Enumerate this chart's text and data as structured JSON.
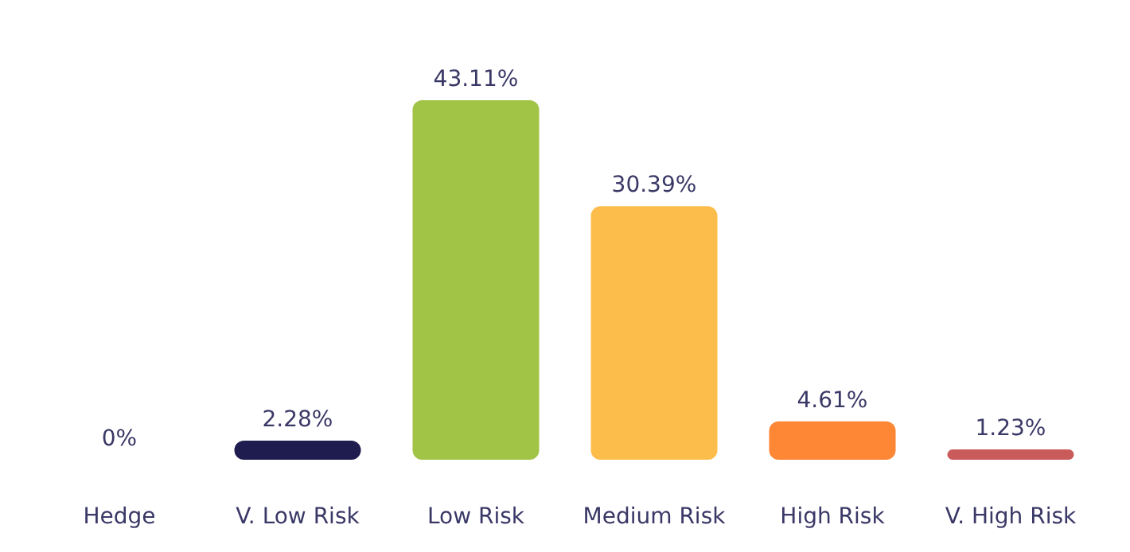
{
  "chart_data": {
    "type": "bar",
    "categories": [
      "Hedge",
      "V. Low Risk",
      "Low Risk",
      "Medium Risk",
      "High Risk",
      "V. High Risk"
    ],
    "values": [
      0,
      2.28,
      43.11,
      30.39,
      4.61,
      1.23
    ],
    "colors": [
      "#1f1d4f",
      "#1f1d4f",
      "#a1c447",
      "#fdbd4b",
      "#fd8735",
      "#c95c5b"
    ],
    "value_labels": [
      "0%",
      "2.28%",
      "43.11%",
      "30.39%",
      "4.61%",
      "1.23%"
    ]
  }
}
